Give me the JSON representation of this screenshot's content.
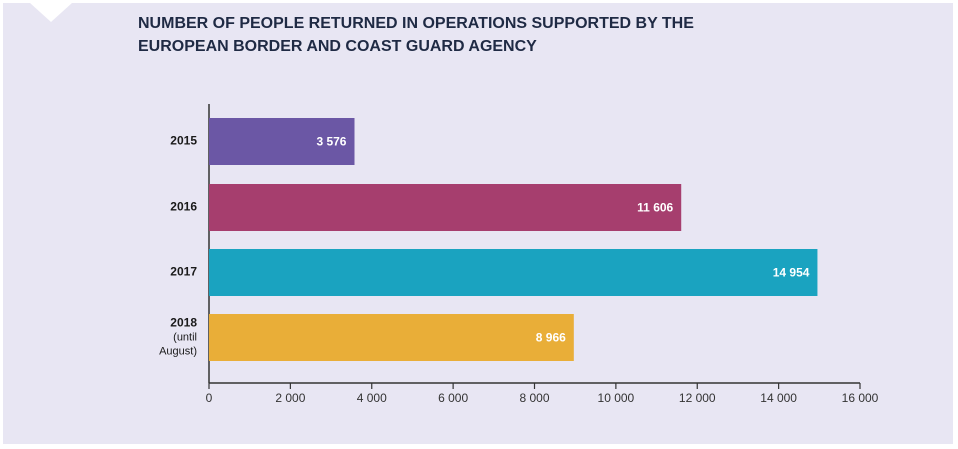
{
  "chart_data": {
    "type": "bar",
    "orientation": "horizontal",
    "title": [
      "NUMBER OF PEOPLE RETURNED IN OPERATIONS SUPPORTED BY THE",
      "EUROPEAN BORDER AND COAST GUARD AGENCY"
    ],
    "categories": [
      "2015",
      "2016",
      "2017",
      "2018 (until August)"
    ],
    "values": [
      3576,
      11606,
      14954,
      8966
    ],
    "value_labels": [
      "3 576",
      "11 606",
      "14 954",
      "8 966"
    ],
    "colors": [
      "#6b57a5",
      "#a63e6e",
      "#1aa3c0",
      "#e9ae38"
    ],
    "xlim": [
      0,
      16000
    ],
    "xticks": [
      0,
      {
        "value": 2000,
        "label": "2 000"
      },
      {
        "value": 4000,
        "label": "4 000"
      },
      {
        "value": 6000,
        "label": "6 000"
      },
      {
        "value": 8000,
        "label": "8 000"
      },
      {
        "value": 10000,
        "label": "10 000"
      },
      {
        "value": 12000,
        "label": "12 000"
      },
      {
        "value": 14000,
        "label": "14 000"
      },
      {
        "value": 16000,
        "label": "16 000"
      }
    ]
  }
}
